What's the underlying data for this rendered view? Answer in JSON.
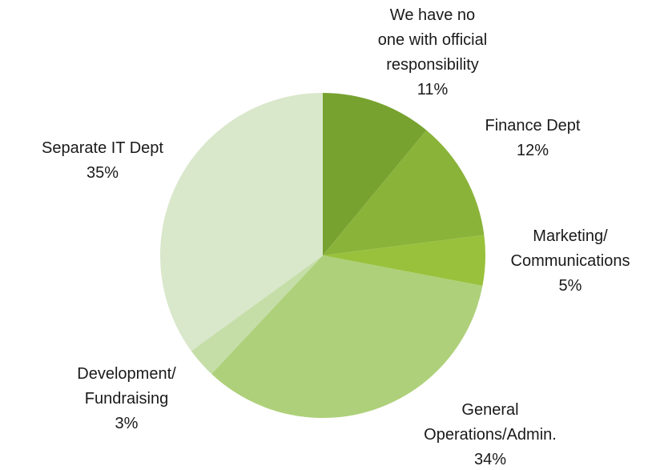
{
  "chart_data": {
    "type": "pie",
    "categories": [
      "We have no\none with official\nresponsibility",
      "Finance Dept",
      "Marketing/\nCommunications",
      "General\nOperations/Admin.",
      "Development/\nFundraising",
      "Separate IT Dept"
    ],
    "values": [
      11,
      12,
      5,
      34,
      3,
      35
    ],
    "value_labels": [
      "11%",
      "12%",
      "5%",
      "34%",
      "3%",
      "35%"
    ],
    "colors": [
      "#77a22f",
      "#8ab33a",
      "#99c13c",
      "#aed07a",
      "#c5dea8",
      "#d9e7cb"
    ]
  }
}
